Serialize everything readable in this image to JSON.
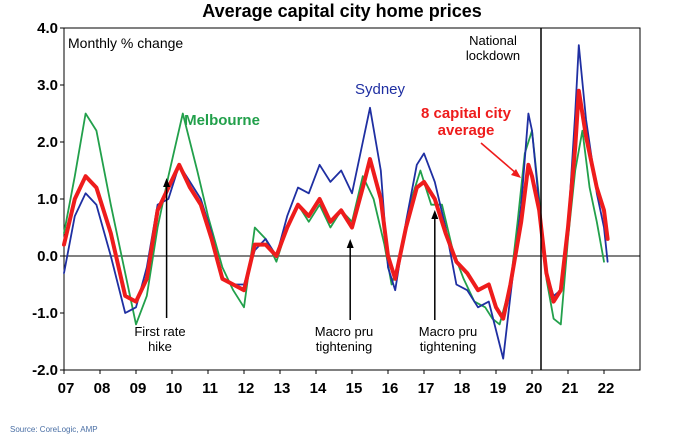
{
  "chart_data": {
    "type": "line",
    "title": "Average capital city home prices",
    "ylabel": "Monthly % change",
    "ylim": [
      -2.0,
      4.0
    ],
    "yticks": [
      "4.0",
      "3.0",
      "2.0",
      "1.0",
      "0.0",
      "-1.0",
      "-2.0"
    ],
    "xticks": [
      "07",
      "08",
      "09",
      "10",
      "11",
      "12",
      "13",
      "14",
      "15",
      "16",
      "17",
      "18",
      "19",
      "20",
      "21",
      "22"
    ],
    "source": "Source: CoreLogic, AMP",
    "series": [
      {
        "name": "Melbourne",
        "color": "#22a04b",
        "points": [
          [
            2007.0,
            0.4
          ],
          [
            2007.3,
            1.4
          ],
          [
            2007.6,
            2.5
          ],
          [
            2007.9,
            2.2
          ],
          [
            2008.3,
            0.9
          ],
          [
            2008.7,
            -0.3
          ],
          [
            2009.0,
            -1.2
          ],
          [
            2009.3,
            -0.7
          ],
          [
            2009.6,
            0.5
          ],
          [
            2009.9,
            1.4
          ],
          [
            2010.3,
            2.5
          ],
          [
            2010.7,
            1.5
          ],
          [
            2011.0,
            0.7
          ],
          [
            2011.4,
            -0.2
          ],
          [
            2011.7,
            -0.6
          ],
          [
            2012.0,
            -0.9
          ],
          [
            2012.3,
            0.5
          ],
          [
            2012.6,
            0.3
          ],
          [
            2012.9,
            -0.1
          ],
          [
            2013.2,
            0.5
          ],
          [
            2013.5,
            0.9
          ],
          [
            2013.8,
            0.6
          ],
          [
            2014.1,
            0.9
          ],
          [
            2014.4,
            0.5
          ],
          [
            2014.7,
            0.8
          ],
          [
            2015.0,
            0.6
          ],
          [
            2015.3,
            1.4
          ],
          [
            2015.6,
            1.0
          ],
          [
            2015.9,
            0.2
          ],
          [
            2016.1,
            -0.5
          ],
          [
            2016.3,
            -0.1
          ],
          [
            2016.6,
            0.9
          ],
          [
            2016.9,
            1.5
          ],
          [
            2017.2,
            0.9
          ],
          [
            2017.5,
            0.9
          ],
          [
            2017.8,
            0.1
          ],
          [
            2018.1,
            -0.4
          ],
          [
            2018.4,
            -0.8
          ],
          [
            2018.7,
            -0.9
          ],
          [
            2018.9,
            -1.1
          ],
          [
            2019.1,
            -1.2
          ],
          [
            2019.4,
            -0.5
          ],
          [
            2019.6,
            0.6
          ],
          [
            2019.8,
            1.8
          ],
          [
            2020.0,
            2.2
          ],
          [
            2020.2,
            1.0
          ],
          [
            2020.4,
            -0.4
          ],
          [
            2020.6,
            -1.1
          ],
          [
            2020.8,
            -1.2
          ],
          [
            2021.0,
            0.3
          ],
          [
            2021.2,
            1.5
          ],
          [
            2021.4,
            2.2
          ],
          [
            2021.6,
            1.2
          ],
          [
            2021.8,
            0.6
          ],
          [
            2022.0,
            -0.1
          ]
        ]
      },
      {
        "name": "Sydney",
        "color": "#1f2fa2",
        "points": [
          [
            2007.0,
            -0.3
          ],
          [
            2007.3,
            0.7
          ],
          [
            2007.6,
            1.1
          ],
          [
            2007.9,
            0.9
          ],
          [
            2008.3,
            0.0
          ],
          [
            2008.7,
            -1.0
          ],
          [
            2009.0,
            -0.9
          ],
          [
            2009.3,
            -0.2
          ],
          [
            2009.6,
            0.9
          ],
          [
            2009.9,
            1.0
          ],
          [
            2010.2,
            1.6
          ],
          [
            2010.5,
            1.3
          ],
          [
            2010.8,
            1.0
          ],
          [
            2011.1,
            0.4
          ],
          [
            2011.4,
            -0.4
          ],
          [
            2011.7,
            -0.5
          ],
          [
            2012.0,
            -0.5
          ],
          [
            2012.3,
            0.1
          ],
          [
            2012.6,
            0.3
          ],
          [
            2012.9,
            0.0
          ],
          [
            2013.2,
            0.7
          ],
          [
            2013.5,
            1.2
          ],
          [
            2013.8,
            1.1
          ],
          [
            2014.1,
            1.6
          ],
          [
            2014.4,
            1.3
          ],
          [
            2014.7,
            1.5
          ],
          [
            2015.0,
            1.1
          ],
          [
            2015.3,
            2.0
          ],
          [
            2015.5,
            2.6
          ],
          [
            2015.8,
            1.5
          ],
          [
            2016.0,
            -0.2
          ],
          [
            2016.2,
            -0.6
          ],
          [
            2016.5,
            0.6
          ],
          [
            2016.8,
            1.6
          ],
          [
            2017.0,
            1.8
          ],
          [
            2017.3,
            1.3
          ],
          [
            2017.6,
            0.5
          ],
          [
            2017.9,
            -0.5
          ],
          [
            2018.2,
            -0.6
          ],
          [
            2018.5,
            -0.9
          ],
          [
            2018.8,
            -0.8
          ],
          [
            2019.0,
            -1.3
          ],
          [
            2019.2,
            -1.8
          ],
          [
            2019.4,
            -0.7
          ],
          [
            2019.7,
            0.9
          ],
          [
            2019.9,
            2.5
          ],
          [
            2020.0,
            2.2
          ],
          [
            2020.2,
            0.9
          ],
          [
            2020.4,
            -0.3
          ],
          [
            2020.6,
            -0.7
          ],
          [
            2020.8,
            -0.6
          ],
          [
            2021.0,
            0.5
          ],
          [
            2021.2,
            2.5
          ],
          [
            2021.3,
            3.7
          ],
          [
            2021.5,
            2.4
          ],
          [
            2021.8,
            1.1
          ],
          [
            2022.0,
            0.5
          ],
          [
            2022.1,
            -0.1
          ]
        ]
      },
      {
        "name": "8 capital city average",
        "color": "#ee1c1c",
        "points": [
          [
            2007.0,
            0.2
          ],
          [
            2007.3,
            1.0
          ],
          [
            2007.6,
            1.4
          ],
          [
            2007.9,
            1.2
          ],
          [
            2008.3,
            0.4
          ],
          [
            2008.7,
            -0.7
          ],
          [
            2009.0,
            -0.8
          ],
          [
            2009.3,
            -0.4
          ],
          [
            2009.6,
            0.8
          ],
          [
            2009.9,
            1.2
          ],
          [
            2010.2,
            1.6
          ],
          [
            2010.5,
            1.2
          ],
          [
            2010.8,
            0.9
          ],
          [
            2011.1,
            0.3
          ],
          [
            2011.4,
            -0.4
          ],
          [
            2011.7,
            -0.5
          ],
          [
            2012.0,
            -0.6
          ],
          [
            2012.3,
            0.2
          ],
          [
            2012.6,
            0.2
          ],
          [
            2012.9,
            0.0
          ],
          [
            2013.2,
            0.5
          ],
          [
            2013.5,
            0.9
          ],
          [
            2013.8,
            0.7
          ],
          [
            2014.1,
            1.0
          ],
          [
            2014.4,
            0.6
          ],
          [
            2014.7,
            0.8
          ],
          [
            2015.0,
            0.5
          ],
          [
            2015.3,
            1.2
          ],
          [
            2015.5,
            1.7
          ],
          [
            2015.8,
            1.0
          ],
          [
            2016.0,
            0.0
          ],
          [
            2016.2,
            -0.4
          ],
          [
            2016.5,
            0.5
          ],
          [
            2016.8,
            1.2
          ],
          [
            2017.0,
            1.3
          ],
          [
            2017.3,
            1.0
          ],
          [
            2017.6,
            0.4
          ],
          [
            2017.9,
            -0.1
          ],
          [
            2018.2,
            -0.3
          ],
          [
            2018.5,
            -0.6
          ],
          [
            2018.8,
            -0.5
          ],
          [
            2019.0,
            -0.9
          ],
          [
            2019.2,
            -1.1
          ],
          [
            2019.4,
            -0.5
          ],
          [
            2019.7,
            0.6
          ],
          [
            2019.9,
            1.6
          ],
          [
            2020.0,
            1.4
          ],
          [
            2020.2,
            0.8
          ],
          [
            2020.4,
            -0.3
          ],
          [
            2020.6,
            -0.8
          ],
          [
            2020.8,
            -0.6
          ],
          [
            2021.0,
            0.5
          ],
          [
            2021.2,
            1.9
          ],
          [
            2021.3,
            2.9
          ],
          [
            2021.5,
            2.1
          ],
          [
            2021.8,
            1.2
          ],
          [
            2022.0,
            0.8
          ],
          [
            2022.1,
            0.3
          ]
        ]
      }
    ],
    "annotations": [
      {
        "id": "rate-hike",
        "lines": [
          "First rate",
          "hike"
        ],
        "x": 2009.85
      },
      {
        "id": "macro-pru-1",
        "lines": [
          "Macro pru",
          "tightening"
        ],
        "x": 2014.95
      },
      {
        "id": "macro-pru-2",
        "lines": [
          "Macro pru",
          "tightening"
        ],
        "x": 2017.3
      },
      {
        "id": "lockdown",
        "lines": [
          "National",
          "lockdown"
        ],
        "x": 2020.25
      }
    ],
    "series_labels": [
      {
        "series": "Melbourne",
        "lines": [
          "Melbourne"
        ]
      },
      {
        "series": "Sydney",
        "lines": [
          "Sydney"
        ]
      },
      {
        "series": "8 capital city average",
        "lines": [
          "8 capital city",
          "average"
        ]
      }
    ]
  }
}
